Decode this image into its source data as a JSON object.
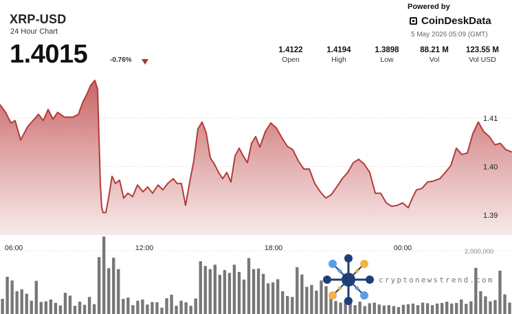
{
  "header": {
    "symbol": "XRP-USD",
    "subtitle": "24 Hour Chart",
    "price": "1.4015",
    "change": "-0.76%",
    "change_direction": "down"
  },
  "branding": {
    "powered_by": "Powered by",
    "name": "CoinDeskData",
    "timestamp": "5 May 2026 05:09 (GMT)"
  },
  "stats": [
    {
      "label": "Open",
      "value": "1.4122"
    },
    {
      "label": "High",
      "value": "1.4194"
    },
    {
      "label": "Low",
      "value": "1.3898"
    },
    {
      "label": "Vol",
      "value": "88.21 M"
    },
    {
      "label": "Vol USD",
      "value": "123.55 M"
    }
  ],
  "watermark": {
    "text": "cryptonewstrend.com"
  },
  "colors": {
    "line": "#b43a3a",
    "area_top": "#c65b5b",
    "area_bottom": "#f5e6e6",
    "volume_bar": "#777777"
  },
  "chart_data": {
    "type": "line",
    "title": "XRP-USD",
    "subtitle": "24 Hour Chart",
    "x_ticks": [
      "06:00",
      "12:00",
      "18:00",
      "00:00"
    ],
    "y_ticks": [
      "1.41",
      "1.40",
      "1.39"
    ],
    "volume_tick": "2,000,000",
    "ylim": [
      1.389,
      1.4195
    ],
    "volume_ylim": [
      0,
      2500000
    ],
    "x_domain": [
      0,
      745
    ],
    "x_tick_positions": [
      20,
      210,
      398,
      586
    ],
    "grid": true,
    "series": [
      {
        "kind": "line",
        "x": [
          0,
          8,
          16,
          22,
          30,
          40,
          48,
          56,
          63,
          70,
          77,
          84,
          94,
          106,
          114,
          121,
          126,
          132,
          138,
          142,
          146,
          148,
          150,
          154,
          158,
          163,
          168,
          174,
          180,
          186,
          193,
          200,
          208,
          215,
          222,
          230,
          237,
          244,
          252,
          258,
          264,
          270,
          276,
          282,
          288,
          294,
          300,
          306,
          312,
          318,
          324,
          330,
          336,
          342,
          348,
          354,
          360,
          366,
          372,
          378,
          386,
          394,
          402,
          410,
          418,
          426,
          434,
          442,
          450,
          458,
          466,
          474,
          482,
          490,
          498,
          506,
          514,
          522,
          530,
          538,
          546,
          554,
          562,
          570,
          578,
          586,
          594,
          600,
          606,
          614,
          622,
          630,
          640,
          648,
          656,
          664,
          672,
          680,
          688,
          696,
          704,
          712,
          720,
          728,
          736,
          745
        ],
        "y": [
          1.4128,
          1.4112,
          1.409,
          1.4095,
          1.4055,
          1.4082,
          1.4095,
          1.4108,
          1.4095,
          1.4118,
          1.4098,
          1.4112,
          1.4102,
          1.4102,
          1.4108,
          1.4135,
          1.4148,
          1.4168,
          1.4178,
          1.416,
          1.3965,
          1.3915,
          1.3905,
          1.3905,
          1.3935,
          1.398,
          1.3965,
          1.3972,
          1.3935,
          1.3945,
          1.3938,
          1.3962,
          1.3948,
          1.3958,
          1.3945,
          1.3962,
          1.3952,
          1.3965,
          1.3975,
          1.3965,
          1.3965,
          1.392,
          1.3968,
          1.4012,
          1.4078,
          1.4092,
          1.407,
          1.4018,
          1.4005,
          1.3988,
          1.3975,
          1.3988,
          1.3968,
          1.4022,
          1.4038,
          1.4022,
          1.4008,
          1.4048,
          1.4062,
          1.404,
          1.4072,
          1.409,
          1.408,
          1.406,
          1.4042,
          1.4035,
          1.4012,
          1.3995,
          1.3995,
          1.3965,
          1.3948,
          1.3935,
          1.3942,
          1.3958,
          1.3975,
          1.3988,
          1.4008,
          1.4015,
          1.4005,
          1.3988,
          1.3945,
          1.3945,
          1.3925,
          1.3918,
          1.392,
          1.3925,
          1.3915,
          1.3935,
          1.3952,
          1.3955,
          1.3968,
          1.397,
          1.3975,
          1.3988,
          1.4002,
          1.4038,
          1.4025,
          1.4028,
          1.4068,
          1.4092,
          1.4072,
          1.4062,
          1.4045,
          1.4048,
          1.4035,
          1.403
        ]
      },
      {
        "kind": "bar",
        "name": "Volume",
        "values": [
          480000,
          1180000,
          1060000,
          720000,
          780000,
          640000,
          420000,
          1050000,
          380000,
          400000,
          460000,
          350000,
          270000,
          670000,
          580000,
          260000,
          390000,
          290000,
          540000,
          310000,
          1800000,
          2450000,
          1450000,
          1780000,
          1420000,
          480000,
          520000,
          280000,
          420000,
          460000,
          300000,
          380000,
          370000,
          200000,
          500000,
          610000,
          260000,
          420000,
          370000,
          260000,
          490000,
          1670000,
          1520000,
          1420000,
          1560000,
          1240000,
          1390000,
          1300000,
          1560000,
          1330000,
          1090000,
          1770000,
          1420000,
          1440000,
          1270000,
          970000,
          1000000,
          1100000,
          720000,
          570000,
          540000,
          1480000,
          1250000,
          860000,
          920000,
          740000,
          1060000,
          880000,
          640000,
          410000,
          360000,
          440000,
          380000,
          280000,
          390000,
          250000,
          340000,
          360000,
          300000,
          270000,
          280000,
          250000,
          220000,
          290000,
          310000,
          330000,
          280000,
          360000,
          340000,
          280000,
          330000,
          350000,
          390000,
          330000,
          350000,
          460000,
          320000,
          400000,
          1460000,
          720000,
          560000,
          400000,
          440000,
          1370000,
          620000,
          360000
        ]
      }
    ]
  }
}
